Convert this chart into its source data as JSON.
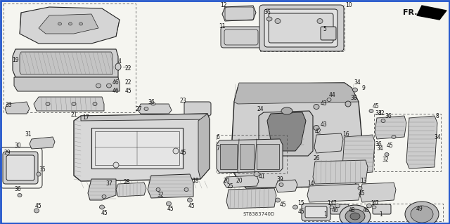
{
  "bg_color": "#f5f5f0",
  "border_color": "#2255cc",
  "border_linewidth": 2.0,
  "diagram_code": "ST8383740D",
  "fr_label": "FR.",
  "fig_width": 6.4,
  "fig_height": 3.19,
  "dpi": 100,
  "lc": "#222222",
  "lw": 0.7,
  "text_color": "#111111",
  "font_size": 5.5,
  "font_size_code": 5.0,
  "dash_color": "#555555",
  "hatch_color": "#888888",
  "fill_light": "#e2e2e2",
  "fill_mid": "#c8c8c8",
  "fill_dark": "#999999"
}
